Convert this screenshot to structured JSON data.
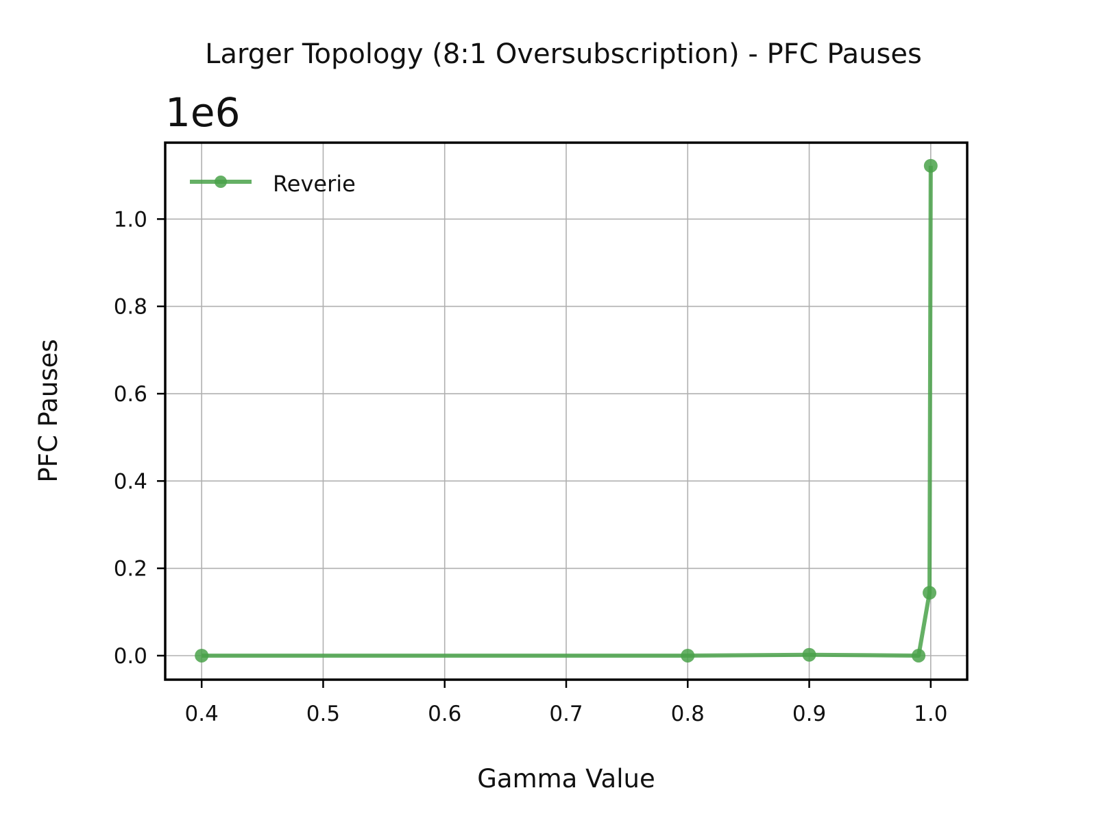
{
  "chart_data": {
    "type": "line",
    "title": "Larger Topology (8:1 Oversubscription) - PFC Pauses",
    "xlabel": "Gamma Value",
    "ylabel": "PFC Pauses",
    "y_scale_label": "1e6",
    "xlim": [
      0.37,
      1.03
    ],
    "ylim": [
      -0.055,
      1.175
    ],
    "x_ticks": [
      0.4,
      0.5,
      0.6,
      0.7,
      0.8,
      0.9,
      1.0
    ],
    "x_tick_labels": [
      "0.4",
      "0.5",
      "0.6",
      "0.7",
      "0.8",
      "0.9",
      "1.0"
    ],
    "y_ticks": [
      0.0,
      0.2,
      0.4,
      0.6,
      0.8,
      1.0
    ],
    "y_tick_labels": [
      "0.0",
      "0.2",
      "0.4",
      "0.6",
      "0.8",
      "1.0"
    ],
    "grid": true,
    "legend_position": "upper-left",
    "series": [
      {
        "name": "Reverie",
        "color": "#4aa24a",
        "marker": "circle",
        "points": [
          {
            "x": 0.4,
            "y": 0.0
          },
          {
            "x": 0.8,
            "y": 0.0
          },
          {
            "x": 0.9,
            "y": 0.002
          },
          {
            "x": 0.99,
            "y": 0.0
          },
          {
            "x": 0.999,
            "y": 0.144
          },
          {
            "x": 1.0,
            "y": 1.122
          }
        ]
      }
    ]
  }
}
